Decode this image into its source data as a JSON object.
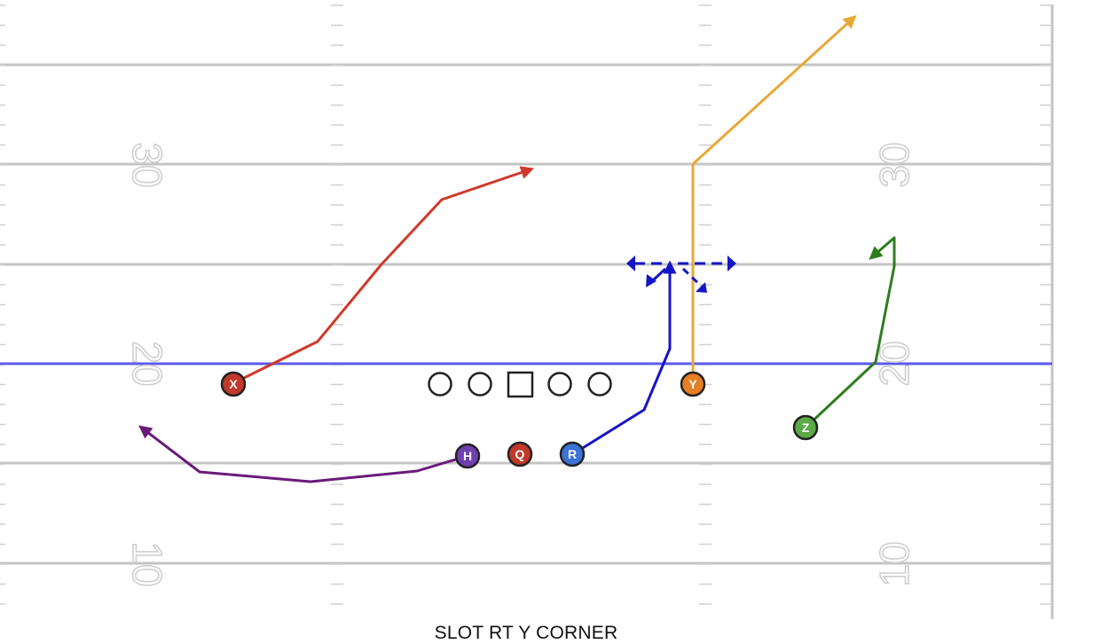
{
  "play": {
    "name": "SLOT RT Y CORNER"
  },
  "field": {
    "yard_numbers": [
      "30",
      "30",
      "20",
      "20",
      "10",
      "10"
    ],
    "line_of_scrimmage_color": "#5b5bf0",
    "yard_line_color": "#c4c4c4"
  },
  "players": [
    {
      "id": "X",
      "label": "X",
      "color": "#c0392b"
    },
    {
      "id": "H",
      "label": "H",
      "color": "#6f3fb0"
    },
    {
      "id": "Q",
      "label": "Q",
      "color": "#c0392b"
    },
    {
      "id": "R",
      "label": "R",
      "color": "#3b73d6"
    },
    {
      "id": "Y",
      "label": "Y",
      "color": "#e67e22"
    },
    {
      "id": "Z",
      "label": "Z",
      "color": "#5aaa46"
    }
  ],
  "linemen": [
    {
      "shape": "circle"
    },
    {
      "shape": "circle"
    },
    {
      "shape": "square"
    },
    {
      "shape": "circle"
    },
    {
      "shape": "circle"
    }
  ],
  "routes": [
    {
      "player": "X",
      "color": "#d0392b",
      "style": "solid"
    },
    {
      "player": "H",
      "color": "#6a1b7a",
      "style": "solid"
    },
    {
      "player": "R",
      "color": "#1515c8",
      "style": "solid"
    },
    {
      "player": "Y",
      "color": "#e8a838",
      "style": "solid"
    },
    {
      "player": "Z",
      "color": "#2e7d1e",
      "style": "solid"
    },
    {
      "player": "R",
      "color": "#1515c8",
      "style": "dashed"
    }
  ]
}
